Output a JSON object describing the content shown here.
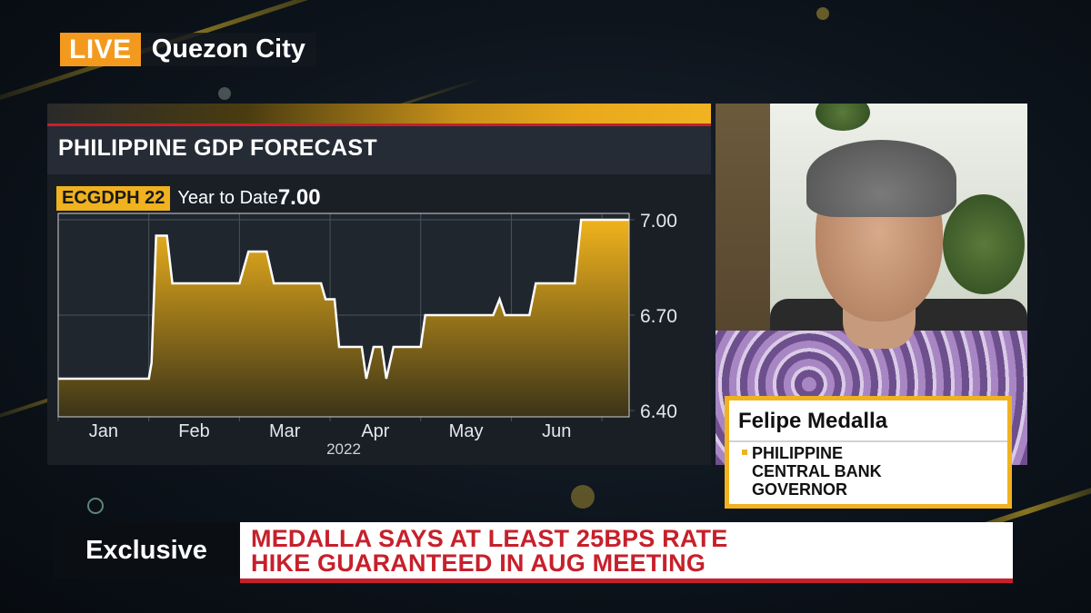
{
  "live": {
    "badge": "LIVE",
    "location": "Quezon City"
  },
  "chart_panel": {
    "title": "PHILIPPINE GDP FORECAST",
    "ticker": "ECGDPH 22",
    "ytd_label": "Year to Date",
    "ytd_value": "7.00",
    "year_label": "2022"
  },
  "chart_data": {
    "type": "area",
    "title": "PHILIPPINE GDP FORECAST",
    "xlabel": "2022",
    "ylabel": "",
    "x_tick_labels": [
      "Jan",
      "Feb",
      "Mar",
      "Apr",
      "May",
      "Jun"
    ],
    "y_tick_labels": [
      "7.00",
      "6.70",
      "6.40"
    ],
    "ylim": [
      6.38,
      7.02
    ],
    "grid": true,
    "series": [
      {
        "values": [
          [
            0.0,
            6.5
          ],
          [
            1.0,
            6.5
          ],
          [
            1.03,
            6.55
          ],
          [
            1.08,
            6.95
          ],
          [
            1.2,
            6.95
          ],
          [
            1.26,
            6.8
          ],
          [
            2.0,
            6.8
          ],
          [
            2.1,
            6.9
          ],
          [
            2.3,
            6.9
          ],
          [
            2.38,
            6.8
          ],
          [
            2.9,
            6.8
          ],
          [
            2.95,
            6.75
          ],
          [
            3.05,
            6.75
          ],
          [
            3.1,
            6.6
          ],
          [
            3.35,
            6.6
          ],
          [
            3.4,
            6.5
          ],
          [
            3.48,
            6.6
          ],
          [
            3.57,
            6.6
          ],
          [
            3.62,
            6.5
          ],
          [
            3.7,
            6.6
          ],
          [
            4.0,
            6.6
          ],
          [
            4.05,
            6.7
          ],
          [
            4.8,
            6.7
          ],
          [
            4.87,
            6.75
          ],
          [
            4.93,
            6.7
          ],
          [
            5.2,
            6.7
          ],
          [
            5.27,
            6.8
          ],
          [
            5.7,
            6.8
          ],
          [
            5.77,
            7.0
          ],
          [
            6.3,
            7.0
          ]
        ]
      }
    ],
    "colors": {
      "fill_top": "#f1b31c",
      "fill_bottom": "#3b3418",
      "line": "#ffffff"
    }
  },
  "guest": {
    "name": "Felipe Medalla",
    "title_lines": [
      "PHILIPPINE",
      "CENTRAL BANK",
      "GOVERNOR"
    ]
  },
  "lower_third": {
    "tag": "Exclusive",
    "headline_lines": [
      "MEDALLA SAYS AT LEAST 25BPS RATE",
      "HIKE GUARANTEED IN AUG MEETING"
    ]
  },
  "colors": {
    "brand_orange": "#f39a1e",
    "brand_yellow": "#f0b21f",
    "brand_red": "#c7202b"
  }
}
